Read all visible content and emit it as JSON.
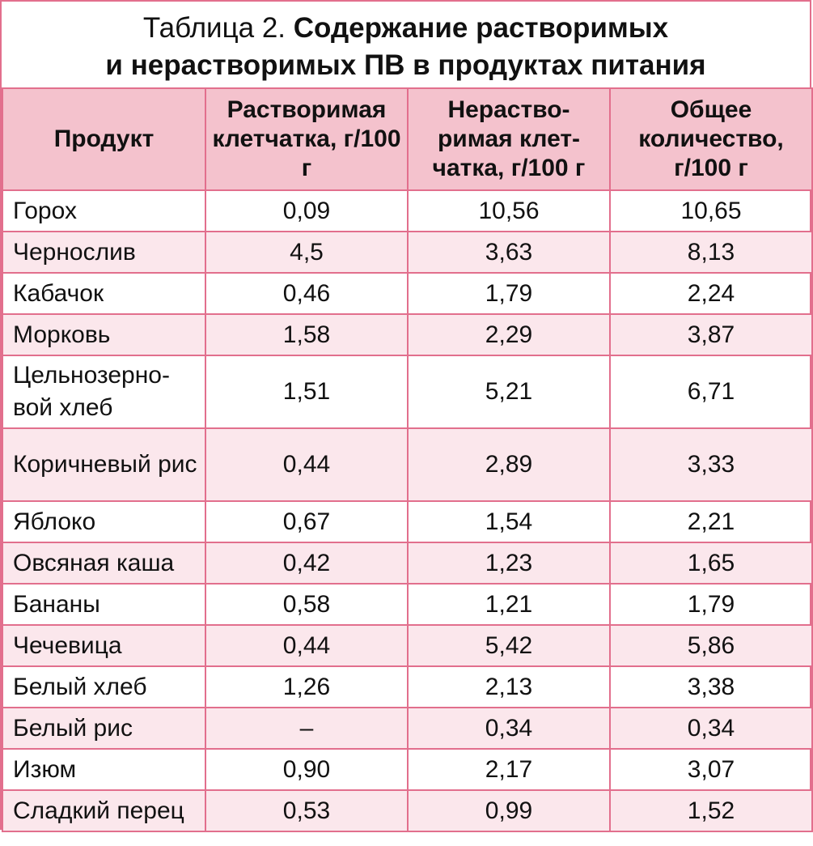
{
  "caption": {
    "prefix": "Таблица 2.",
    "title_line1": "Содержание растворимых",
    "title_line2": "и нерастворимых ПВ в продуктах питания"
  },
  "headers": [
    "Продукт",
    "Растворимая клетчатка, г/100 г",
    "Нераство-римая клет-чатка, г/100 г",
    "Общее количество, г/100 г"
  ],
  "rows": [
    {
      "product": "Горох",
      "soluble": "0,09",
      "insoluble": "10,56",
      "total": "10,65"
    },
    {
      "product": "Чернослив",
      "soluble": "4,5",
      "insoluble": "3,63",
      "total": "8,13"
    },
    {
      "product": "Кабачок",
      "soluble": "0,46",
      "insoluble": "1,79",
      "total": "2,24"
    },
    {
      "product": "Морковь",
      "soluble": "1,58",
      "insoluble": "2,29",
      "total": "3,87"
    },
    {
      "product": "Цельнозерно-вой хлеб",
      "soluble": "1,51",
      "insoluble": "5,21",
      "total": "6,71"
    },
    {
      "product": "Коричневый рис",
      "soluble": "0,44",
      "insoluble": "2,89",
      "total": "3,33"
    },
    {
      "product": "Яблоко",
      "soluble": "0,67",
      "insoluble": "1,54",
      "total": "2,21"
    },
    {
      "product": "Овсяная каша",
      "soluble": "0,42",
      "insoluble": "1,23",
      "total": "1,65"
    },
    {
      "product": "Бананы",
      "soluble": "0,58",
      "insoluble": "1,21",
      "total": "1,79"
    },
    {
      "product": "Чечевица",
      "soluble": "0,44",
      "insoluble": "5,42",
      "total": "5,86"
    },
    {
      "product": "Белый хлеб",
      "soluble": "1,26",
      "insoluble": "2,13",
      "total": "3,38"
    },
    {
      "product": "Белый рис",
      "soluble": "–",
      "insoluble": "0,34",
      "total": "0,34"
    },
    {
      "product": "Изюм",
      "soluble": "0,90",
      "insoluble": "2,17",
      "total": "3,07"
    },
    {
      "product": "Сладкий перец",
      "soluble": "0,53",
      "insoluble": "0,99",
      "total": "1,52"
    }
  ],
  "colors": {
    "border": "#e26f8d",
    "header_bg": "#f4c2cd",
    "alt_row_bg": "#fbe7ec"
  }
}
